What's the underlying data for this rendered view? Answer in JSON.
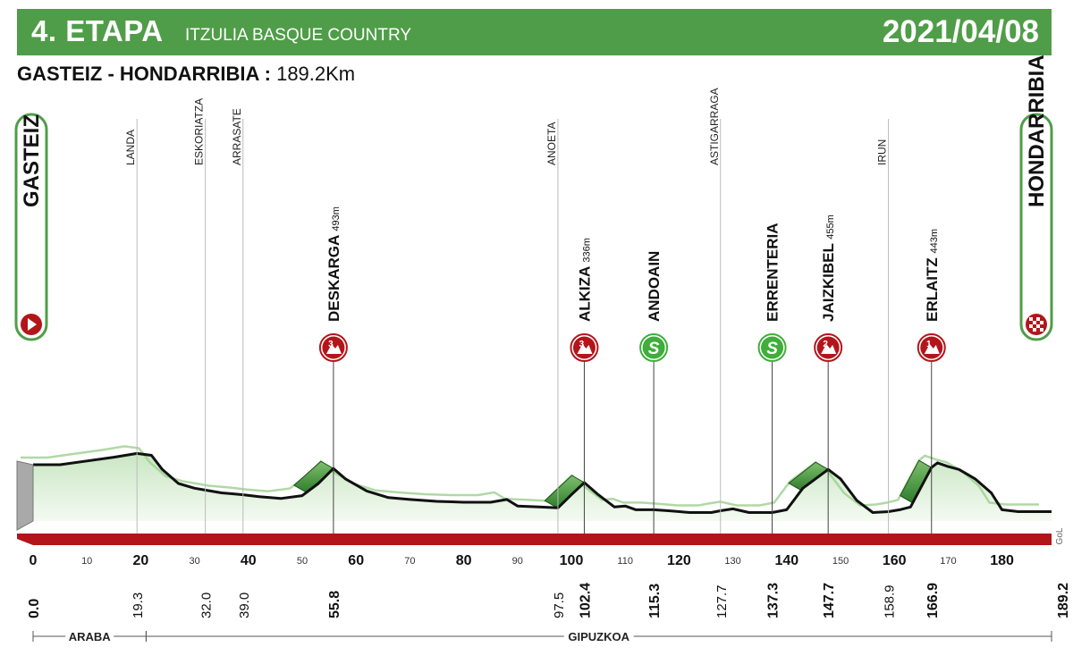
{
  "header": {
    "stage": "4. ETAPA",
    "race": "ITZULIA BASQUE COUNTRY",
    "date": "2021/04/08",
    "route": "GASTEIZ - HONDARRIBIA :",
    "distance": "189.2Km"
  },
  "brand_colors": {
    "header_green": "#4f9d48",
    "base_red": "#b3161a",
    "climb_red": "#b3161a",
    "sprint_green": "#3fae3a"
  },
  "chart_data": {
    "type": "area",
    "x_unit": "km",
    "xlim": [
      0,
      189.2
    ],
    "x_ticks_major": [
      0,
      20,
      40,
      60,
      80,
      100,
      120,
      140,
      160,
      180
    ],
    "x_ticks_minor": [
      10,
      30,
      50,
      70,
      90,
      110,
      130,
      150,
      170
    ],
    "profile_km": [
      0,
      5,
      10,
      15,
      19.3,
      22,
      24,
      27,
      30,
      32,
      35,
      39,
      42,
      46,
      50,
      53,
      55.8,
      58,
      62,
      66,
      70,
      75,
      80,
      85,
      88,
      90,
      94,
      97.5,
      100,
      102.4,
      105,
      108,
      110,
      112,
      115.3,
      118,
      122,
      126,
      127.7,
      130,
      133,
      137.3,
      140,
      143,
      147.7,
      150,
      153,
      156,
      158.9,
      161,
      163,
      166.9,
      168,
      170,
      172,
      175,
      178,
      180,
      183,
      186,
      189.2
    ],
    "profile_level": [
      0.6,
      0.6,
      0.64,
      0.68,
      0.72,
      0.7,
      0.55,
      0.4,
      0.35,
      0.33,
      0.3,
      0.28,
      0.26,
      0.24,
      0.27,
      0.4,
      0.56,
      0.45,
      0.32,
      0.25,
      0.23,
      0.21,
      0.2,
      0.2,
      0.23,
      0.16,
      0.15,
      0.14,
      0.28,
      0.41,
      0.28,
      0.15,
      0.16,
      0.12,
      0.12,
      0.11,
      0.09,
      0.09,
      0.11,
      0.13,
      0.09,
      0.09,
      0.12,
      0.35,
      0.55,
      0.45,
      0.22,
      0.09,
      0.1,
      0.12,
      0.15,
      0.57,
      0.62,
      0.58,
      0.55,
      0.45,
      0.3,
      0.12,
      0.1,
      0.1,
      0.1
    ],
    "towns": [
      {
        "name": "LANDA",
        "km": 19.3,
        "label": "19.3"
      },
      {
        "name": "ESKORIATZA",
        "km": 32.0,
        "label": "32.0"
      },
      {
        "name": "ARRASATE",
        "km": 39.0,
        "label": "39.0"
      },
      {
        "name": "ANOETA",
        "km": 97.5,
        "label": "97.5"
      },
      {
        "name": "ASTIGARRAGA",
        "km": 127.7,
        "label": "127.7"
      },
      {
        "name": "IRUN",
        "km": 158.9,
        "label": "158.9"
      }
    ],
    "climbs": [
      {
        "name": "DESKARGA",
        "alt": "493m",
        "km": 55.8,
        "label": "55.8",
        "category": "3"
      },
      {
        "name": "ALKIZA",
        "alt": "336m",
        "km": 102.4,
        "label": "102.4",
        "category": "3"
      },
      {
        "name": "JAIZKIBEL",
        "alt": "455m",
        "km": 147.7,
        "label": "147.7",
        "category": "2"
      },
      {
        "name": "ERLAITZ",
        "alt": "443m",
        "km": 166.9,
        "label": "166.9",
        "category": "1"
      }
    ],
    "sprints": [
      {
        "name": "ANDOAIN",
        "km": 115.3,
        "label": "115.3",
        "icon": "S"
      },
      {
        "name": "ERRENTERIA",
        "km": 137.3,
        "label": "137.3",
        "icon": "S"
      }
    ],
    "start": {
      "name": "GASTEIZ",
      "km": 0,
      "label": "0.0"
    },
    "finish": {
      "name": "HONDARRIBIA",
      "km": 189.2,
      "label": "189.2"
    },
    "regions": [
      {
        "name": "ARABA",
        "from": 0,
        "to": 21
      },
      {
        "name": "GIPUZKOA",
        "from": 21,
        "to": 189.2
      }
    ],
    "credit": "GoL"
  }
}
